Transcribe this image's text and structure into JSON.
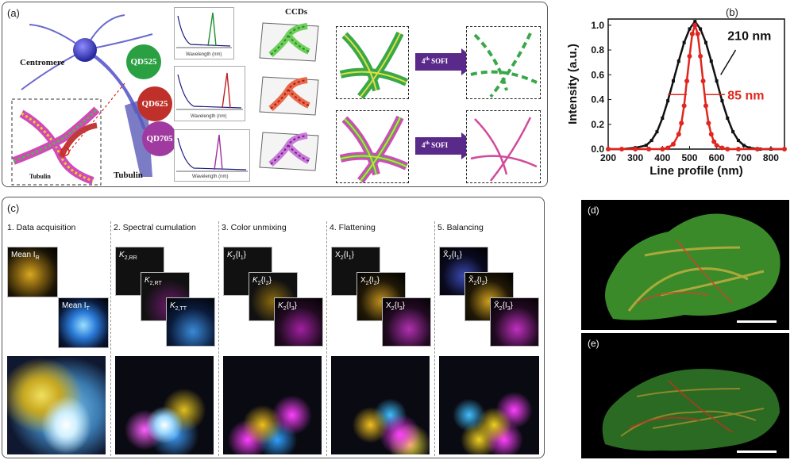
{
  "panel_a": {
    "label": "(a)",
    "centromere": "Centromere",
    "tubulin_left": "Tubulin",
    "tubulin_right": "Tubulin",
    "qd": [
      {
        "label": "QD525",
        "color": "#2aa043"
      },
      {
        "label": "QD625",
        "color": "#c0302a"
      },
      {
        "label": "QD705",
        "color": "#a03aa0"
      }
    ],
    "ccds": "CCDs",
    "spectra_xlabel": "Wavelength (nm)",
    "spectra_ticks": [
      [
        "300",
        "400",
        "500",
        "600",
        "700"
      ],
      [
        "300",
        "400",
        "500",
        "600",
        "700",
        "800"
      ],
      [
        "300",
        "400",
        "500",
        "600",
        "700",
        "800",
        "900",
        "1000"
      ]
    ],
    "sofi_label_base": "4",
    "sofi_label_sup": "th",
    "sofi_label_rest": " SOFI"
  },
  "panel_b": {
    "label": "(b)"
  },
  "chart_data": {
    "type": "line",
    "xlabel": "Line profile (nm)",
    "ylabel": "Intensity (a.u.)",
    "xlim": [
      200,
      850
    ],
    "ylim": [
      0,
      1.05
    ],
    "xticks": [
      200,
      300,
      400,
      500,
      600,
      700,
      800
    ],
    "yticks": [
      0.0,
      0.2,
      0.4,
      0.6,
      0.8,
      1.0
    ],
    "series": [
      {
        "color": "#111111",
        "x": [
          200,
          250,
          300,
          340,
          360,
          380,
          400,
          420,
          440,
          460,
          480,
          500,
          520,
          540,
          560,
          580,
          600,
          620,
          640,
          660,
          680,
          700,
          720,
          760,
          800,
          850
        ],
        "y": [
          0,
          0,
          0.01,
          0.03,
          0.07,
          0.14,
          0.25,
          0.39,
          0.55,
          0.71,
          0.86,
          0.97,
          1.03,
          0.97,
          0.86,
          0.71,
          0.55,
          0.39,
          0.25,
          0.14,
          0.07,
          0.03,
          0.01,
          0,
          0,
          0
        ]
      },
      {
        "color": "#e0261e",
        "x": [
          200,
          250,
          300,
          350,
          400,
          420,
          440,
          460,
          470,
          480,
          490,
          500,
          510,
          520,
          530,
          540,
          550,
          560,
          570,
          580,
          590,
          600,
          620,
          640,
          680,
          750,
          850
        ],
        "y": [
          0,
          0,
          0,
          0,
          0,
          0.01,
          0.04,
          0.12,
          0.21,
          0.35,
          0.55,
          0.75,
          0.93,
          1.0,
          0.93,
          0.75,
          0.55,
          0.35,
          0.21,
          0.12,
          0.06,
          0.03,
          0.01,
          0,
          0,
          0,
          0
        ]
      }
    ],
    "annotations": [
      {
        "text": "210 nm",
        "color": "#111111"
      },
      {
        "text": "85 nm",
        "color": "#e0261e"
      }
    ]
  },
  "panel_c": {
    "label": "(c)",
    "steps": [
      {
        "title": "1. Data acquisition"
      },
      {
        "title": "2. Spectral cumulation"
      },
      {
        "title": "3. Color unmixing"
      },
      {
        "title": "4. Flattening"
      },
      {
        "title": "5. Balancing"
      }
    ],
    "tiles": {
      "s1": [
        {
          "main": "Mean I",
          "sub": "R"
        },
        {
          "main": "Mean I",
          "sub": "T"
        }
      ],
      "s2": [
        {
          "main": "K",
          "sub": "2,RR"
        },
        {
          "main": "K",
          "sub": "2,RT"
        },
        {
          "main": "K",
          "sub": "2,TT"
        }
      ],
      "s3": [
        {
          "main": "K",
          "sub": "2",
          "tail": "{I",
          "tsub": "1",
          "end": "}"
        },
        {
          "main": "K",
          "sub": "2",
          "tail": "{I",
          "tsub": "2",
          "end": "}"
        },
        {
          "main": "K",
          "sub": "2",
          "tail": "{I",
          "tsub": "3",
          "end": "}"
        }
      ],
      "s4": [
        {
          "main": "X",
          "sub": "2",
          "tail": "{I",
          "tsub": "1",
          "end": "}"
        },
        {
          "main": "X",
          "sub": "2",
          "tail": "{I",
          "tsub": "2",
          "end": "}"
        },
        {
          "main": "X",
          "sub": "2",
          "tail": "{I",
          "tsub": "3",
          "end": "}"
        }
      ],
      "s5": [
        {
          "main": "X̃",
          "sub": "2",
          "tail": "{I",
          "tsub": "1",
          "end": "}"
        },
        {
          "main": "X̃",
          "sub": "2",
          "tail": "{I",
          "tsub": "2",
          "end": "}"
        },
        {
          "main": "X̃",
          "sub": "2",
          "tail": "{I",
          "tsub": "3",
          "end": "}"
        }
      ]
    }
  },
  "panel_d": {
    "label": "(d)"
  },
  "panel_e": {
    "label": "(e)"
  }
}
